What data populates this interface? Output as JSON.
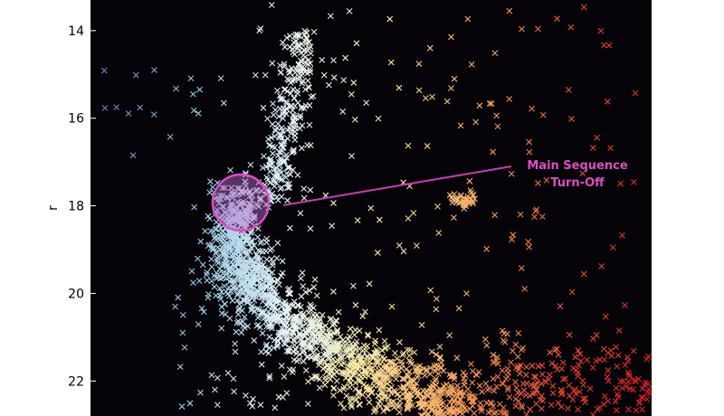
{
  "chart_data": {
    "type": "scatter",
    "title": "",
    "xlabel": "",
    "ylabel": "r",
    "y_axis_inverted": true,
    "ylim": [
      13.3,
      22.8
    ],
    "yticks": [
      14,
      16,
      18,
      20,
      22
    ],
    "ytick_labels": [
      "14",
      "16",
      "18",
      "20",
      "22"
    ],
    "x_tick_labels_visible": false,
    "background": "#050308",
    "marker": "x",
    "colormap": "Spectral (blue at left / bluer color, red at right / redder color)",
    "colormap_stops": [
      "#5e72b8",
      "#8fc3e4",
      "#e6f4f8",
      "#f8e8a6",
      "#f4a35c",
      "#e0452f",
      "#d21c24"
    ],
    "series_description": "Color–magnitude diagram: dense main sequence curving from the turn-off (~r 18) down and to the right toward r ~22.8; subgiant/giant branch rising to r ~14; sparse field stars scattered to the right.",
    "annotation": {
      "lines": [
        "Main Sequence",
        "Turn-Off"
      ],
      "color": "#d94fc0",
      "marker_fill": "#c06ad0",
      "target_r": 17.9,
      "target_x_frac": 0.268
    },
    "key_points": [
      {
        "label": "turn-off",
        "x_frac": 0.268,
        "r": 17.9
      },
      {
        "label": "giant branch top",
        "x_frac": 0.36,
        "r": 14.2
      },
      {
        "label": "blue horizontal branch",
        "x_frac": 0.05,
        "r": 15.5
      },
      {
        "label": "main sequence lower end",
        "x_frac": 0.55,
        "r": 22.7
      }
    ]
  }
}
